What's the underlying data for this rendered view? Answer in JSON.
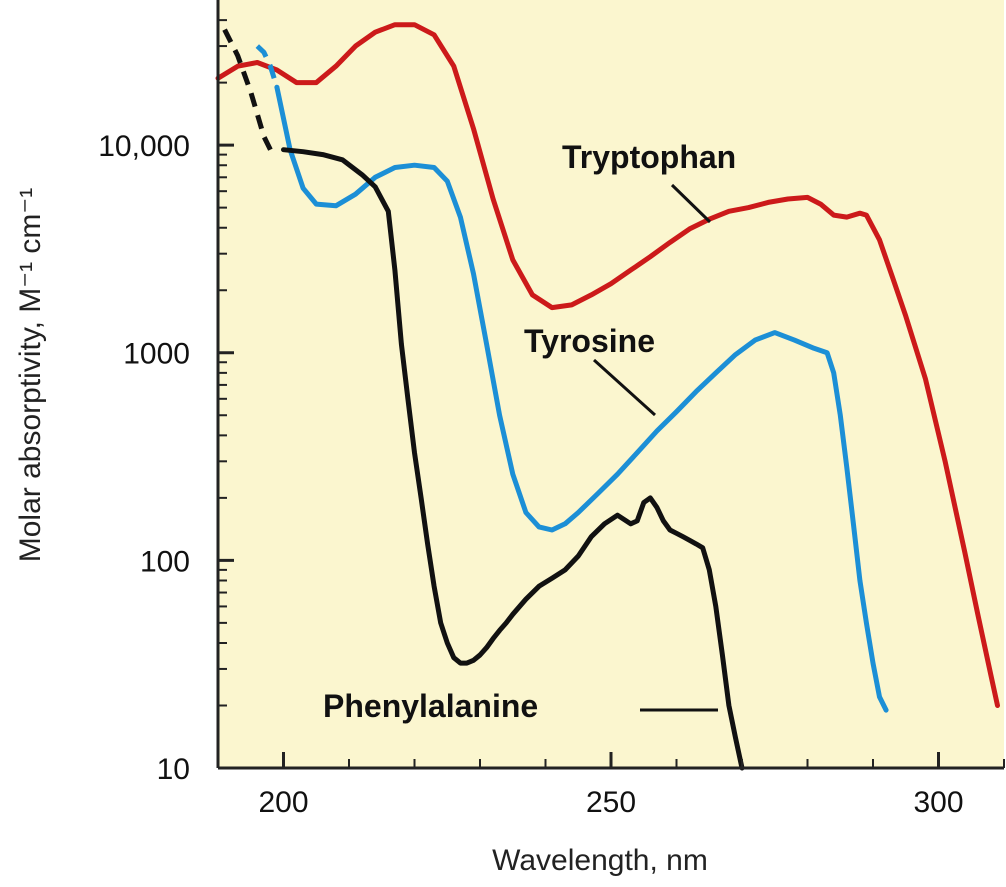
{
  "chart_data": {
    "type": "line",
    "title": "",
    "xlabel": "Wavelength, nm",
    "ylabel_main": "Molar absorptivity, ",
    "ylabel_units": "M⁻¹ cm⁻¹",
    "xscale": "linear",
    "yscale": "log",
    "xlim": [
      190,
      310
    ],
    "ylim": [
      10,
      50000
    ],
    "x_ticks": [
      200,
      250,
      300
    ],
    "x_tick_labels": [
      "200",
      "250",
      "300"
    ],
    "y_ticks": [
      10,
      100,
      1000,
      10000
    ],
    "y_tick_labels": [
      "10",
      "100",
      "1000",
      "10,000"
    ],
    "grid": false,
    "background": "#fbf6cf",
    "series": [
      {
        "name": "Tryptophan",
        "label": "Tryptophan",
        "color": "#cc1a1a",
        "dashed_x": [],
        "dashed_y": [],
        "x": [
          190,
          193,
          196,
          199,
          202,
          205,
          208,
          211,
          214,
          217,
          220,
          223,
          226,
          229,
          232,
          235,
          238,
          241,
          244,
          247,
          250,
          253,
          256,
          259,
          262,
          265,
          268,
          271,
          274,
          277,
          280,
          282,
          284,
          286,
          288,
          289,
          291,
          293,
          295,
          298,
          301,
          304,
          306,
          308,
          309
        ],
        "y": [
          21000,
          24000,
          25000,
          23000,
          20000,
          20000,
          24000,
          30000,
          35000,
          38000,
          38000,
          34000,
          24000,
          12000,
          5500,
          2800,
          1900,
          1650,
          1700,
          1900,
          2150,
          2500,
          2900,
          3400,
          3950,
          4400,
          4800,
          5000,
          5300,
          5500,
          5600,
          5200,
          4600,
          4500,
          4700,
          4600,
          3500,
          2300,
          1500,
          750,
          300,
          110,
          55,
          28,
          20
        ]
      },
      {
        "name": "Tyrosine",
        "label": "Tyrosine",
        "color": "#1c8fd6",
        "dashed_x": [
          196,
          197,
          198,
          199
        ],
        "dashed_y": [
          30000,
          28000,
          24000,
          19000
        ],
        "x": [
          199,
          201,
          203,
          205,
          208,
          211,
          214,
          217,
          220,
          223,
          225,
          227,
          229,
          231,
          233,
          235,
          237,
          239,
          241,
          243,
          245,
          248,
          251,
          254,
          257,
          260,
          263,
          266,
          269,
          272,
          275,
          278,
          281,
          283,
          284,
          285,
          286,
          287,
          288,
          289,
          290,
          291,
          292
        ],
        "y": [
          19000,
          9500,
          6200,
          5200,
          5100,
          5800,
          7000,
          7800,
          8000,
          7800,
          6700,
          4500,
          2400,
          1100,
          500,
          260,
          170,
          145,
          140,
          150,
          170,
          210,
          260,
          330,
          420,
          520,
          650,
          800,
          980,
          1150,
          1250,
          1150,
          1050,
          1000,
          800,
          500,
          280,
          150,
          80,
          50,
          32,
          22,
          19
        ]
      },
      {
        "name": "Phenylalanine",
        "label": "Phenylalanine",
        "color": "#111111",
        "dashed_x": [
          191,
          193,
          195,
          197,
          198
        ],
        "dashed_y": [
          36000,
          27000,
          18000,
          11000,
          9500
        ],
        "x": [
          200,
          203,
          206,
          209,
          212,
          214,
          216,
          217,
          218,
          219,
          220,
          221,
          222,
          223,
          224,
          225,
          226,
          227,
          228,
          229,
          230,
          231,
          232,
          233,
          234,
          235,
          237,
          239,
          241,
          243,
          245,
          247,
          249,
          251,
          253,
          254,
          255,
          256,
          257,
          258,
          259,
          260,
          261,
          262,
          263,
          264,
          265,
          266,
          267,
          268,
          269,
          270
        ],
        "y": [
          9500,
          9300,
          9000,
          8500,
          7200,
          6300,
          4800,
          2500,
          1100,
          600,
          330,
          200,
          120,
          75,
          50,
          40,
          34,
          32,
          32,
          33,
          35,
          38,
          42,
          46,
          50,
          55,
          65,
          75,
          82,
          90,
          105,
          130,
          150,
          165,
          150,
          155,
          190,
          200,
          180,
          155,
          140,
          135,
          130,
          125,
          120,
          115,
          90,
          60,
          35,
          20,
          14,
          10
        ]
      }
    ]
  }
}
